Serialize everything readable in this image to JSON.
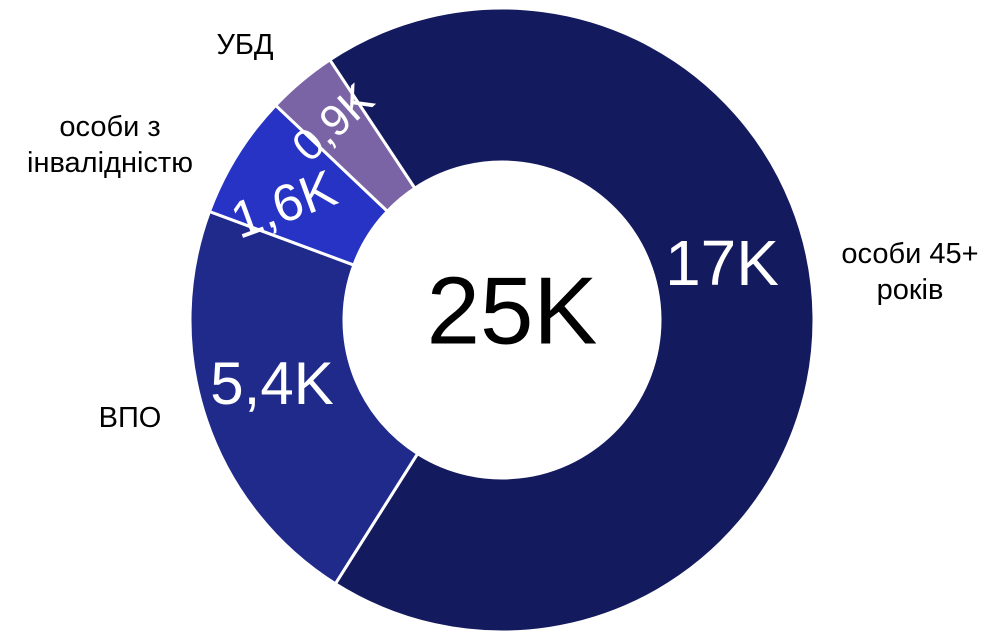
{
  "chart_data": {
    "type": "donut",
    "center_text": "25K",
    "categories": [
      "особи 45+ років",
      "ВПО",
      "особи з інвалідністю",
      "УБД"
    ],
    "values": [
      17000,
      5400,
      1600,
      900
    ],
    "value_labels": [
      "17K",
      "5,4K",
      "1,6K",
      "0,9K"
    ],
    "colors": [
      "#141a5e",
      "#1f2a8a",
      "#2633c4",
      "#7b64a5"
    ]
  }
}
